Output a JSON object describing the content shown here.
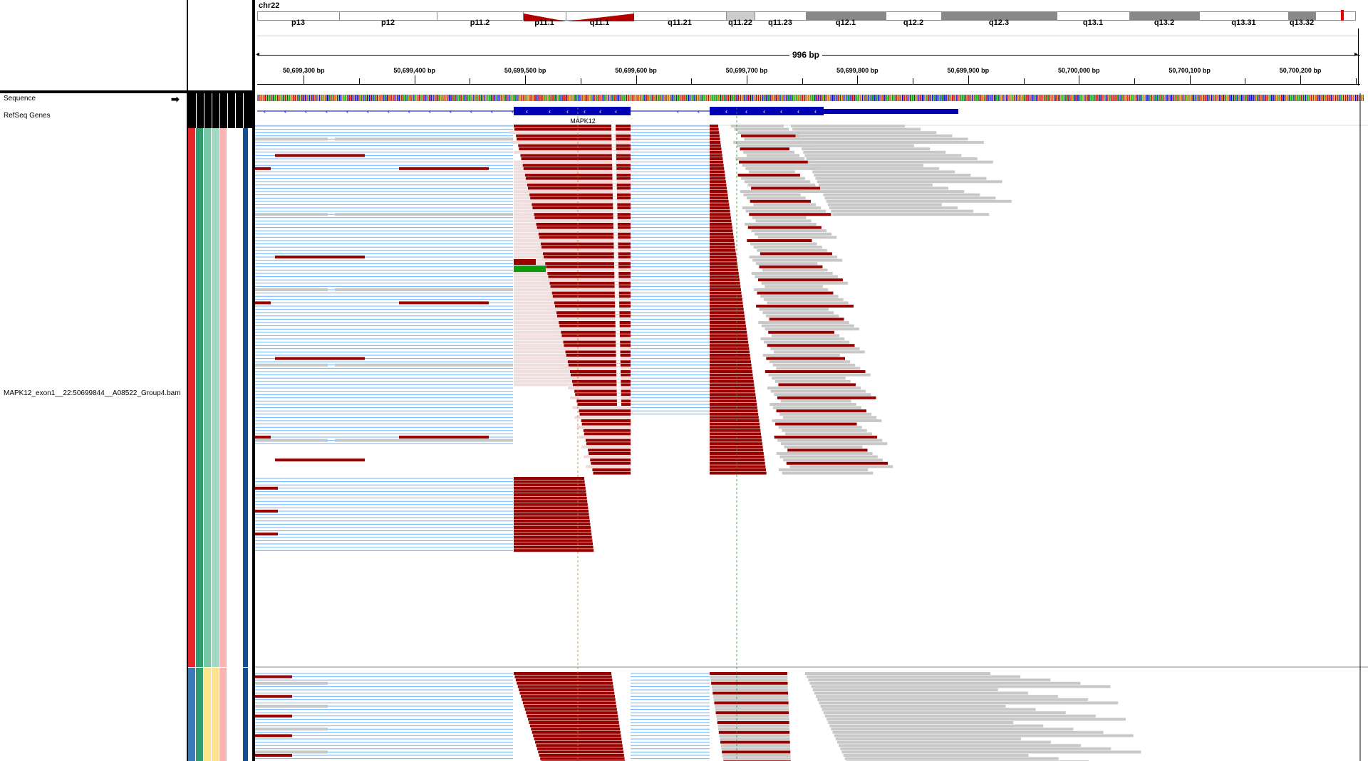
{
  "window": {
    "chromosome": "chr22",
    "span_label": "996 bp",
    "view_start": 50699258,
    "view_end": 50700254
  },
  "ideogram": {
    "bands": [
      {
        "name": "p13",
        "stain": "white"
      },
      {
        "name": "p12",
        "stain": "white"
      },
      {
        "name": "p11.2",
        "stain": "white"
      },
      {
        "name": "p11.1",
        "stain": "centromere"
      },
      {
        "name": "q11.1",
        "stain": "centromere"
      },
      {
        "name": "q11.21",
        "stain": "white"
      },
      {
        "name": "q11.22",
        "stain": "light"
      },
      {
        "name": "q11.23",
        "stain": "white"
      },
      {
        "name": "q12.1",
        "stain": "gray"
      },
      {
        "name": "q12.2",
        "stain": "white"
      },
      {
        "name": "q12.3",
        "stain": "gray"
      },
      {
        "name": "q13.1",
        "stain": "white"
      },
      {
        "name": "q13.2",
        "stain": "gray"
      },
      {
        "name": "q13.31",
        "stain": "white"
      },
      {
        "name": "q13.32",
        "stain": "gray"
      }
    ]
  },
  "ruler": {
    "ticks": [
      {
        "label": "50,699,300 bp",
        "pos": 50699300
      },
      {
        "label": "50,699,400 bp",
        "pos": 50699400
      },
      {
        "label": "50,699,500 bp",
        "pos": 50699500
      },
      {
        "label": "50,699,600 bp",
        "pos": 50699600
      },
      {
        "label": "50,699,700 bp",
        "pos": 50699700
      },
      {
        "label": "50,699,800 bp",
        "pos": 50699800
      },
      {
        "label": "50,699,900 bp",
        "pos": 50699900
      },
      {
        "label": "50,700,000 bp",
        "pos": 50700000
      },
      {
        "label": "50,700,100 bp",
        "pos": 50700100
      },
      {
        "label": "50,700,200 bp",
        "pos": 50700200
      }
    ]
  },
  "tracks": {
    "sequence_label": "Sequence",
    "refseq_label": "RefSeq Genes",
    "gene_name": "MAPK12",
    "alignment_label": "MAPK12_exon1__22:50699844__A08522_Group4.bam"
  },
  "colors": {
    "red_read": "#990000",
    "gray_read": "#c8c8c8",
    "gene_blue": "#0000b4",
    "intron_blue": "#6cb4ff",
    "green_read": "#0b9b0b",
    "group1_attr": [
      "#e8262a",
      "#2e9c6e",
      "#79c7a9",
      "#9dd9c3",
      "#f9b4b4",
      "#ffffff",
      "#ffffff",
      "#134e92"
    ],
    "group2_attr": [
      "#3a7ab8",
      "#2e9c6e",
      "#fce589",
      "#fde38e",
      "#f9b4b4",
      "#ffffff",
      "#ffffff",
      "#134e92"
    ]
  }
}
